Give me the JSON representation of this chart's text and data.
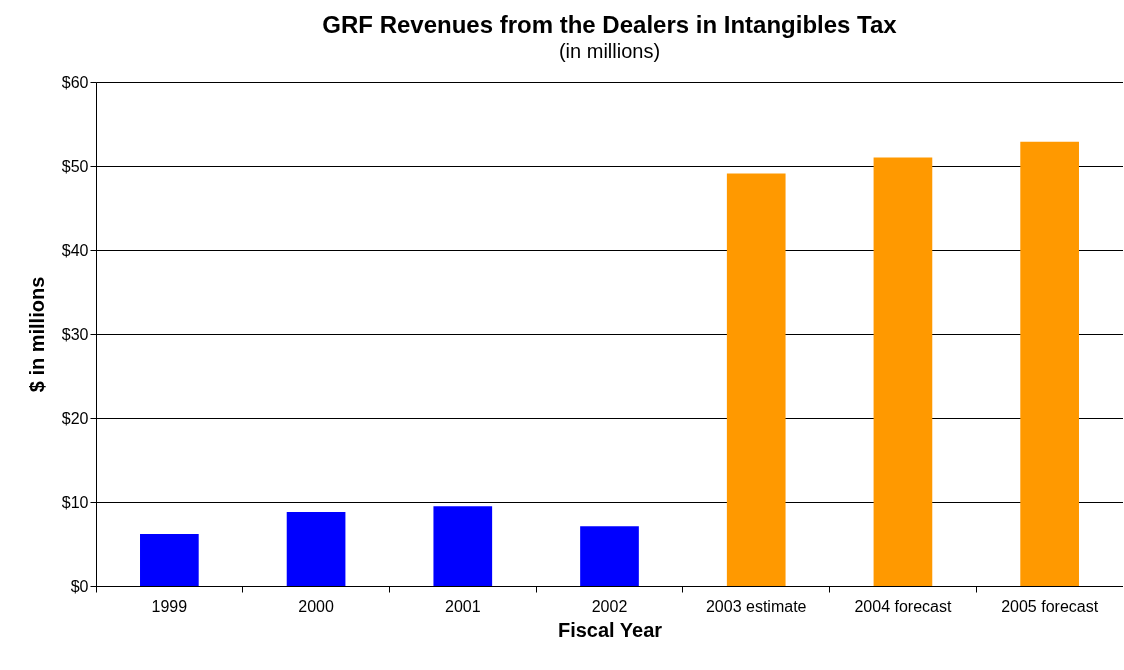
{
  "chart_data": {
    "type": "bar",
    "title": "GRF Revenues from the Dealers in Intangibles Tax",
    "subtitle": "(in millions)",
    "xlabel": "Fiscal Year",
    "ylabel": "$ in millions",
    "categories": [
      "1999",
      "2000",
      "2001",
      "2002",
      "2003 estimate",
      "2004 forecast",
      "2005 forecast"
    ],
    "values": [
      6.2,
      8.8,
      9.5,
      7.1,
      49.1,
      51.0,
      52.9
    ],
    "colors": [
      "#0000ff",
      "#0000ff",
      "#0000ff",
      "#0000ff",
      "#ff9900",
      "#ff9900",
      "#ff9900"
    ],
    "ylim": [
      0,
      60
    ],
    "yticks": [
      {
        "value": 0,
        "label": "$0"
      },
      {
        "value": 10,
        "label": "$10"
      },
      {
        "value": 20,
        "label": "$20"
      },
      {
        "value": 30,
        "label": "$30"
      },
      {
        "value": 40,
        "label": "$40"
      },
      {
        "value": 50,
        "label": "$50"
      },
      {
        "value": 60,
        "label": "$60"
      }
    ],
    "grid": "y"
  }
}
